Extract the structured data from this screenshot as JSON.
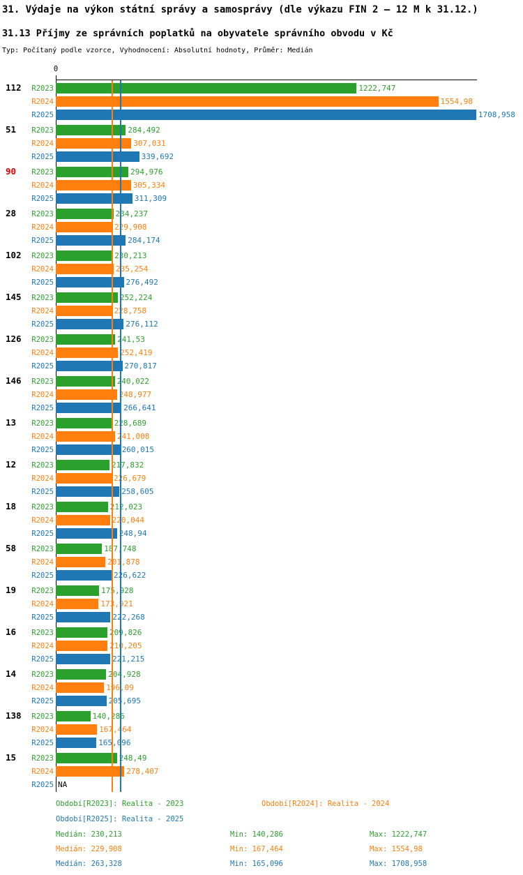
{
  "title": "31. Výdaje na výkon státní správy a samosprávy (dle výkazu FIN 2 – 12 M k 31.12.)",
  "subtitle": "31.13 Příjmy ze správních poplatků na obyvatele správního obvodu v Kč",
  "meta": "Typ: Počítaný podle vzorce, Vyhodnocení: Absolutní hodnoty, Průměr: Medián",
  "chart_data": {
    "type": "bar",
    "orientation": "horizontal",
    "x_origin_label": "0",
    "xlim": [
      0,
      1712
    ],
    "na_label": "NA",
    "highlight_color": "#dd0000",
    "series_order": [
      "R2023",
      "R2024",
      "R2025"
    ],
    "series_colors": {
      "R2023": "#2ca02c",
      "R2024": "#ff7f0e",
      "R2025": "#1f77b4"
    },
    "medians": {
      "R2023": 230.213,
      "R2024": 229.908,
      "R2025": 263.328
    },
    "groups": [
      {
        "label": "112",
        "values": {
          "R2023": 1222.747,
          "R2024": 1554.98,
          "R2025": 1708.958
        }
      },
      {
        "label": "51",
        "values": {
          "R2023": 284.492,
          "R2024": 307.031,
          "R2025": 339.692
        }
      },
      {
        "label": "90",
        "highlight": true,
        "values": {
          "R2023": 294.976,
          "R2024": 305.334,
          "R2025": 311.309
        }
      },
      {
        "label": "28",
        "values": {
          "R2023": 234.237,
          "R2024": 229.908,
          "R2025": 284.174
        }
      },
      {
        "label": "102",
        "values": {
          "R2023": 230.213,
          "R2024": 235.254,
          "R2025": 276.492
        }
      },
      {
        "label": "145",
        "values": {
          "R2023": 252.224,
          "R2024": 228.758,
          "R2025": 276.112
        }
      },
      {
        "label": "126",
        "values": {
          "R2023": 241.53,
          "R2024": 252.419,
          "R2025": 270.817
        }
      },
      {
        "label": "146",
        "values": {
          "R2023": 240.022,
          "R2024": 248.977,
          "R2025": 266.641
        }
      },
      {
        "label": "13",
        "values": {
          "R2023": 228.689,
          "R2024": 241.008,
          "R2025": 260.015
        }
      },
      {
        "label": "12",
        "values": {
          "R2023": 217.832,
          "R2024": 226.679,
          "R2025": 258.605
        }
      },
      {
        "label": "18",
        "values": {
          "R2023": 212.023,
          "R2024": 220.044,
          "R2025": 248.94
        }
      },
      {
        "label": "58",
        "values": {
          "R2023": 187.748,
          "R2024": 201.878,
          "R2025": 226.622
        }
      },
      {
        "label": "19",
        "values": {
          "R2023": 175.928,
          "R2024": 173.921,
          "R2025": 222.268
        }
      },
      {
        "label": "16",
        "values": {
          "R2023": 209.826,
          "R2024": 210.205,
          "R2025": 221.215
        }
      },
      {
        "label": "14",
        "values": {
          "R2023": 204.928,
          "R2024": 196.09,
          "R2025": 205.695
        }
      },
      {
        "label": "138",
        "values": {
          "R2023": 140.286,
          "R2024": 167.464,
          "R2025": 165.096
        }
      },
      {
        "label": "15",
        "values": {
          "R2023": 248.49,
          "R2024": 278.407,
          "R2025": null
        }
      }
    ]
  },
  "footer": {
    "periods": [
      {
        "series": "R2023",
        "label": "Období[R2023]: Realita - 2023"
      },
      {
        "series": "R2024",
        "label": "Období[R2024]: Realita - 2024"
      },
      {
        "series": "R2025",
        "label": "Období[R2025]: Realita - 2025"
      }
    ],
    "stats": [
      {
        "series": "R2023",
        "median": "Medián: 230,213",
        "min": "Min: 140,286",
        "max": "Max: 1222,747"
      },
      {
        "series": "R2024",
        "median": "Medián: 229,908",
        "min": "Min: 167,464",
        "max": "Max: 1554,98"
      },
      {
        "series": "R2025",
        "median": "Medián: 263,328",
        "min": "Min: 165,096",
        "max": "Max: 1708,958"
      }
    ]
  }
}
